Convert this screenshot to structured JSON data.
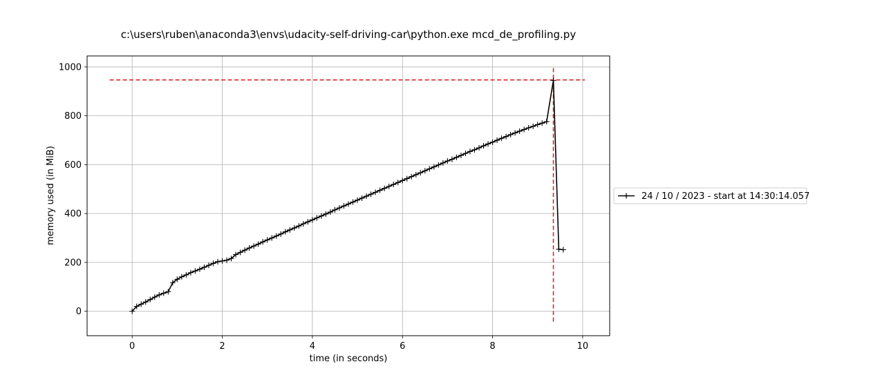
{
  "chart_data": {
    "type": "line",
    "title": "c:\\users\\ruben\\anaconda3\\envs\\udacity-self-driving-car\\python.exe mcd_de_profiling.py",
    "xlabel": "time (in seconds)",
    "ylabel": "memory used (in MiB)",
    "xlim": [
      -1.0,
      10.6
    ],
    "ylim": [
      -100,
      1045
    ],
    "xticks": [
      0,
      2,
      4,
      6,
      8,
      10
    ],
    "yticks": [
      0,
      200,
      400,
      600,
      800,
      1000
    ],
    "grid": true,
    "legend_position": "right, outside axes",
    "series": [
      {
        "name": "24 / 10 / 2023 - start at 14:30:14.057",
        "color": "#000000",
        "marker": "+",
        "x": [
          0.0,
          0.1,
          0.2,
          0.3,
          0.4,
          0.5,
          0.6,
          0.7,
          0.8,
          0.9,
          1.0,
          1.1,
          1.2,
          1.3,
          1.4,
          1.5,
          1.6,
          1.7,
          1.8,
          1.9,
          2.0,
          2.1,
          2.2,
          2.3,
          2.4,
          2.5,
          2.6,
          2.7,
          2.8,
          2.9,
          3.0,
          3.1,
          3.2,
          3.3,
          3.4,
          3.5,
          3.6,
          3.7,
          3.8,
          3.9,
          4.0,
          4.1,
          4.2,
          4.3,
          4.4,
          4.5,
          4.6,
          4.7,
          4.8,
          4.9,
          5.0,
          5.1,
          5.2,
          5.3,
          5.4,
          5.5,
          5.6,
          5.7,
          5.8,
          5.9,
          6.0,
          6.1,
          6.2,
          6.3,
          6.4,
          6.5,
          6.6,
          6.7,
          6.8,
          6.9,
          7.0,
          7.1,
          7.2,
          7.3,
          7.4,
          7.5,
          7.6,
          7.7,
          7.8,
          7.9,
          8.0,
          8.1,
          8.2,
          8.3,
          8.4,
          8.5,
          8.6,
          8.7,
          8.8,
          8.9,
          9.0,
          9.1,
          9.2,
          9.35,
          9.47,
          9.57
        ],
        "y": [
          0,
          20,
          29,
          38,
          48,
          58,
          67,
          74,
          80,
          117,
          131,
          141,
          149,
          158,
          165,
          172,
          180,
          188,
          196,
          203,
          206,
          209,
          216,
          232,
          241,
          250,
          259,
          267,
          275,
          284,
          292,
          300,
          308,
          316,
          325,
          333,
          341,
          349,
          358,
          366,
          374,
          382,
          390,
          398,
          406,
          415,
          423,
          431,
          439,
          447,
          455,
          463,
          471,
          479,
          487,
          495,
          503,
          511,
          519,
          527,
          535,
          543,
          551,
          559,
          567,
          575,
          583,
          591,
          599,
          607,
          615,
          622,
          630,
          638,
          646,
          654,
          661,
          669,
          677,
          685,
          692,
          700,
          708,
          715,
          723,
          730,
          737,
          744,
          751,
          757,
          764,
          770,
          776,
          945,
          254,
          252
        ]
      }
    ],
    "annotations": [
      {
        "type": "hline",
        "y": 947,
        "x_range": [
          -0.5,
          10.05
        ],
        "color": "#d62728",
        "style": "dashed"
      },
      {
        "type": "vline",
        "x": 9.35,
        "y_range": [
          -45,
          995
        ],
        "color": "#d62728",
        "style": "dashed"
      }
    ]
  }
}
